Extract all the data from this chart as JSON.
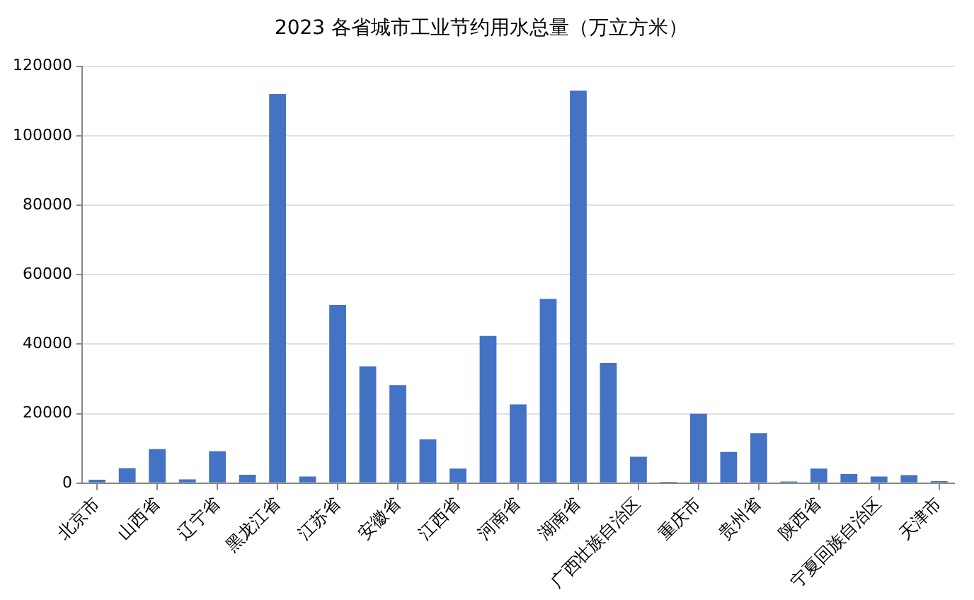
{
  "chart_data": {
    "type": "bar",
    "title": "2023 各省城市工业节约用水总量（万立方米）",
    "categories": [
      "北京市",
      null,
      "山西省",
      null,
      "辽宁省",
      null,
      "黑龙江省",
      null,
      "江苏省",
      null,
      "安徽省",
      null,
      "江西省",
      null,
      "河南省",
      null,
      "湖南省",
      null,
      "广西壮族自治区",
      null,
      "重庆市",
      null,
      "贵州省",
      null,
      "陕西省",
      null,
      "宁夏回族自治区",
      null,
      "天津市"
    ],
    "values": [
      1000,
      4300,
      9800,
      1100,
      9200,
      2400,
      112000,
      1900,
      51300,
      33600,
      28200,
      12600,
      4200,
      42400,
      22700,
      53000,
      113000,
      34600,
      7600,
      400,
      20000,
      9000,
      14400,
      500,
      4200,
      2600,
      1900,
      2300,
      600
    ],
    "color": "#4472c4",
    "ylim": [
      0,
      120000
    ],
    "yticks": [
      0,
      20000,
      40000,
      60000,
      80000,
      100000,
      120000
    ],
    "grid": "y"
  }
}
